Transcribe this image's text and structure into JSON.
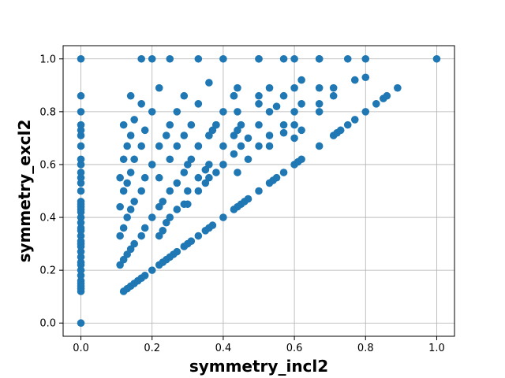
{
  "chart_data": {
    "type": "scatter",
    "title": "",
    "xlabel": "symmetry_incl2",
    "ylabel": "symmetry_excl2",
    "xlim": [
      -0.05,
      1.05
    ],
    "ylim": [
      -0.05,
      1.05
    ],
    "xticks": [
      "0.0",
      "0.2",
      "0.4",
      "0.6",
      "0.8",
      "1.0"
    ],
    "yticks": [
      "0.0",
      "0.2",
      "0.4",
      "0.6",
      "0.8",
      "1.0"
    ],
    "grid": true,
    "marker_color": "#1f77b4",
    "series": [
      {
        "points": [
          [
            0.0,
            0.0
          ],
          [
            0.0,
            0.12
          ],
          [
            0.0,
            0.13
          ],
          [
            0.0,
            0.14
          ],
          [
            0.0,
            0.15
          ],
          [
            0.0,
            0.16
          ],
          [
            0.0,
            0.18
          ],
          [
            0.0,
            0.2
          ],
          [
            0.0,
            0.22
          ],
          [
            0.0,
            0.23
          ],
          [
            0.0,
            0.25
          ],
          [
            0.0,
            0.27
          ],
          [
            0.0,
            0.29
          ],
          [
            0.0,
            0.3
          ],
          [
            0.0,
            0.31
          ],
          [
            0.0,
            0.33
          ],
          [
            0.0,
            0.35
          ],
          [
            0.0,
            0.36
          ],
          [
            0.0,
            0.38
          ],
          [
            0.0,
            0.4
          ],
          [
            0.0,
            0.42
          ],
          [
            0.0,
            0.43
          ],
          [
            0.0,
            0.44
          ],
          [
            0.0,
            0.45
          ],
          [
            0.0,
            0.46
          ],
          [
            0.0,
            0.5
          ],
          [
            0.0,
            0.53
          ],
          [
            0.0,
            0.55
          ],
          [
            0.0,
            0.57
          ],
          [
            0.0,
            0.6
          ],
          [
            0.0,
            0.62
          ],
          [
            0.0,
            0.67
          ],
          [
            0.0,
            0.71
          ],
          [
            0.0,
            0.73
          ],
          [
            0.0,
            0.75
          ],
          [
            0.0,
            0.8
          ],
          [
            0.0,
            0.86
          ],
          [
            0.0,
            1.0
          ],
          [
            0.12,
            0.12
          ],
          [
            0.13,
            0.13
          ],
          [
            0.14,
            0.14
          ],
          [
            0.15,
            0.15
          ],
          [
            0.16,
            0.16
          ],
          [
            0.17,
            0.17
          ],
          [
            0.18,
            0.18
          ],
          [
            0.2,
            0.2
          ],
          [
            0.22,
            0.22
          ],
          [
            0.23,
            0.23
          ],
          [
            0.24,
            0.24
          ],
          [
            0.25,
            0.25
          ],
          [
            0.26,
            0.26
          ],
          [
            0.27,
            0.27
          ],
          [
            0.29,
            0.29
          ],
          [
            0.3,
            0.3
          ],
          [
            0.31,
            0.31
          ],
          [
            0.33,
            0.33
          ],
          [
            0.35,
            0.35
          ],
          [
            0.36,
            0.36
          ],
          [
            0.37,
            0.37
          ],
          [
            0.4,
            0.4
          ],
          [
            0.43,
            0.43
          ],
          [
            0.44,
            0.44
          ],
          [
            0.45,
            0.45
          ],
          [
            0.46,
            0.46
          ],
          [
            0.47,
            0.47
          ],
          [
            0.5,
            0.5
          ],
          [
            0.53,
            0.53
          ],
          [
            0.54,
            0.54
          ],
          [
            0.55,
            0.55
          ],
          [
            0.57,
            0.57
          ],
          [
            0.6,
            0.6
          ],
          [
            0.61,
            0.61
          ],
          [
            0.62,
            0.62
          ],
          [
            0.67,
            0.67
          ],
          [
            0.71,
            0.71
          ],
          [
            0.72,
            0.72
          ],
          [
            0.73,
            0.73
          ],
          [
            0.75,
            0.75
          ],
          [
            0.77,
            0.77
          ],
          [
            0.8,
            0.8
          ],
          [
            0.83,
            0.83
          ],
          [
            0.85,
            0.85
          ],
          [
            0.86,
            0.86
          ],
          [
            0.89,
            0.89
          ],
          [
            1.0,
            1.0
          ],
          [
            0.11,
            0.22
          ],
          [
            0.12,
            0.24
          ],
          [
            0.13,
            0.26
          ],
          [
            0.14,
            0.28
          ],
          [
            0.15,
            0.3
          ],
          [
            0.17,
            0.33
          ],
          [
            0.18,
            0.36
          ],
          [
            0.2,
            0.4
          ],
          [
            0.22,
            0.44
          ],
          [
            0.23,
            0.46
          ],
          [
            0.25,
            0.5
          ],
          [
            0.27,
            0.53
          ],
          [
            0.29,
            0.57
          ],
          [
            0.3,
            0.6
          ],
          [
            0.31,
            0.62
          ],
          [
            0.33,
            0.67
          ],
          [
            0.36,
            0.71
          ],
          [
            0.37,
            0.73
          ],
          [
            0.38,
            0.75
          ],
          [
            0.4,
            0.8
          ],
          [
            0.43,
            0.86
          ],
          [
            0.44,
            0.89
          ],
          [
            0.5,
            1.0
          ],
          [
            0.11,
            0.33
          ],
          [
            0.12,
            0.36
          ],
          [
            0.13,
            0.4
          ],
          [
            0.14,
            0.43
          ],
          [
            0.15,
            0.46
          ],
          [
            0.17,
            0.5
          ],
          [
            0.18,
            0.55
          ],
          [
            0.2,
            0.6
          ],
          [
            0.22,
            0.67
          ],
          [
            0.24,
            0.71
          ],
          [
            0.25,
            0.75
          ],
          [
            0.27,
            0.8
          ],
          [
            0.29,
            0.86
          ],
          [
            0.33,
            1.0
          ],
          [
            0.11,
            0.44
          ],
          [
            0.12,
            0.5
          ],
          [
            0.13,
            0.53
          ],
          [
            0.14,
            0.57
          ],
          [
            0.15,
            0.62
          ],
          [
            0.17,
            0.67
          ],
          [
            0.18,
            0.73
          ],
          [
            0.2,
            0.8
          ],
          [
            0.22,
            0.89
          ],
          [
            0.25,
            1.0
          ],
          [
            0.11,
            0.55
          ],
          [
            0.12,
            0.62
          ],
          [
            0.13,
            0.67
          ],
          [
            0.14,
            0.71
          ],
          [
            0.15,
            0.77
          ],
          [
            0.17,
            0.83
          ],
          [
            0.2,
            1.0
          ],
          [
            0.12,
            0.75
          ],
          [
            0.14,
            0.86
          ],
          [
            0.17,
            1.0
          ],
          [
            0.22,
            0.33
          ],
          [
            0.23,
            0.35
          ],
          [
            0.24,
            0.38
          ],
          [
            0.25,
            0.4
          ],
          [
            0.27,
            0.43
          ],
          [
            0.29,
            0.45
          ],
          [
            0.3,
            0.5
          ],
          [
            0.33,
            0.55
          ],
          [
            0.35,
            0.58
          ],
          [
            0.36,
            0.6
          ],
          [
            0.4,
            0.67
          ],
          [
            0.43,
            0.71
          ],
          [
            0.44,
            0.73
          ],
          [
            0.45,
            0.75
          ],
          [
            0.5,
            0.83
          ],
          [
            0.53,
            0.89
          ],
          [
            0.6,
            1.0
          ],
          [
            0.22,
            0.55
          ],
          [
            0.25,
            0.62
          ],
          [
            0.27,
            0.67
          ],
          [
            0.29,
            0.71
          ],
          [
            0.31,
            0.75
          ],
          [
            0.33,
            0.83
          ],
          [
            0.36,
            0.91
          ],
          [
            0.4,
            1.0
          ],
          [
            0.3,
            0.45
          ],
          [
            0.33,
            0.5
          ],
          [
            0.35,
            0.53
          ],
          [
            0.36,
            0.55
          ],
          [
            0.38,
            0.57
          ],
          [
            0.4,
            0.6
          ],
          [
            0.43,
            0.64
          ],
          [
            0.45,
            0.67
          ],
          [
            0.47,
            0.7
          ],
          [
            0.5,
            0.75
          ],
          [
            0.53,
            0.8
          ],
          [
            0.55,
            0.82
          ],
          [
            0.6,
            0.89
          ],
          [
            0.67,
            1.0
          ],
          [
            0.33,
            0.67
          ],
          [
            0.36,
            0.71
          ],
          [
            0.38,
            0.75
          ],
          [
            0.43,
            0.86
          ],
          [
            0.5,
            1.0
          ],
          [
            0.44,
            0.57
          ],
          [
            0.47,
            0.62
          ],
          [
            0.5,
            0.67
          ],
          [
            0.53,
            0.71
          ],
          [
            0.57,
            0.75
          ],
          [
            0.6,
            0.8
          ],
          [
            0.62,
            0.83
          ],
          [
            0.67,
            0.89
          ],
          [
            0.75,
            1.0
          ],
          [
            0.44,
            0.8
          ],
          [
            0.5,
            0.86
          ],
          [
            0.57,
            1.0
          ],
          [
            0.53,
            0.67
          ],
          [
            0.57,
            0.72
          ],
          [
            0.6,
            0.75
          ],
          [
            0.67,
            0.83
          ],
          [
            0.71,
            0.89
          ],
          [
            0.8,
            1.0
          ],
          [
            0.57,
            0.86
          ],
          [
            0.62,
            0.92
          ],
          [
            0.67,
            1.0
          ],
          [
            0.6,
            0.7
          ],
          [
            0.62,
            0.73
          ],
          [
            0.67,
            0.8
          ],
          [
            0.71,
            0.86
          ],
          [
            0.77,
            0.92
          ],
          [
            0.8,
            0.93
          ]
        ]
      }
    ]
  }
}
